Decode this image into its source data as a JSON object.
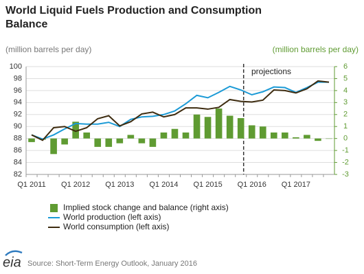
{
  "chart_data": {
    "type": "combo",
    "title": "World Liquid Fuels Production and Consumption Balance",
    "y_label": "(million barrels per day)",
    "y2_label": "(million barrels per day)",
    "annotation": "projections",
    "source": "Source: Short-Term Energy Outlook, January 2016",
    "categories": [
      "Q1 2011",
      null,
      null,
      null,
      "Q1 2012",
      null,
      null,
      null,
      "Q1 2013",
      null,
      null,
      null,
      "Q1 2014",
      null,
      null,
      null,
      "Q1 2015",
      null,
      null,
      null,
      "Q1 2016",
      null,
      null,
      null,
      "Q1 2017",
      null,
      null,
      null
    ],
    "ylim": [
      82,
      100
    ],
    "yticks": [
      100,
      98,
      96,
      94,
      92,
      90,
      88,
      86,
      84,
      82
    ],
    "y2lim": [
      -3,
      6
    ],
    "y2ticks": [
      6,
      5,
      4,
      3,
      2,
      1,
      0,
      -1,
      -2,
      -3
    ],
    "grid": true,
    "series": [
      {
        "name": "Implied stock change and balance (right axis)",
        "type": "bar",
        "axis": "y2",
        "color": "#5f9b32",
        "values": [
          -0.3,
          -0.1,
          -1.3,
          -0.5,
          1.4,
          0.5,
          -0.7,
          -0.7,
          -0.4,
          0.3,
          -0.4,
          -0.7,
          0.5,
          0.8,
          0.5,
          2.0,
          1.8,
          2.5,
          1.9,
          1.7,
          1.1,
          1.0,
          0.5,
          0.5,
          0.1,
          0.3,
          -0.2,
          0.0
        ]
      },
      {
        "name": "World production (left axis)",
        "type": "line",
        "color": "#1b9ad6",
        "values": [
          88.6,
          87.9,
          88.6,
          89.6,
          90.5,
          90.4,
          90.4,
          90.7,
          90.0,
          91.2,
          91.6,
          91.7,
          92.0,
          92.6,
          93.8,
          95.2,
          94.8,
          95.7,
          96.7,
          96.1,
          95.3,
          95.8,
          96.6,
          96.5,
          95.7,
          96.5,
          97.4,
          97.4
        ]
      },
      {
        "name": "World consumption (left axis)",
        "type": "line",
        "color": "#3d2b0f",
        "values": [
          88.6,
          87.7,
          89.8,
          90.0,
          89.2,
          89.8,
          91.3,
          91.8,
          90.1,
          90.8,
          92.1,
          92.4,
          91.6,
          92.0,
          93.1,
          93.1,
          92.9,
          93.2,
          94.5,
          94.2,
          94.1,
          94.4,
          96.1,
          96.0,
          95.6,
          96.3,
          97.6,
          97.4
        ]
      }
    ]
  }
}
